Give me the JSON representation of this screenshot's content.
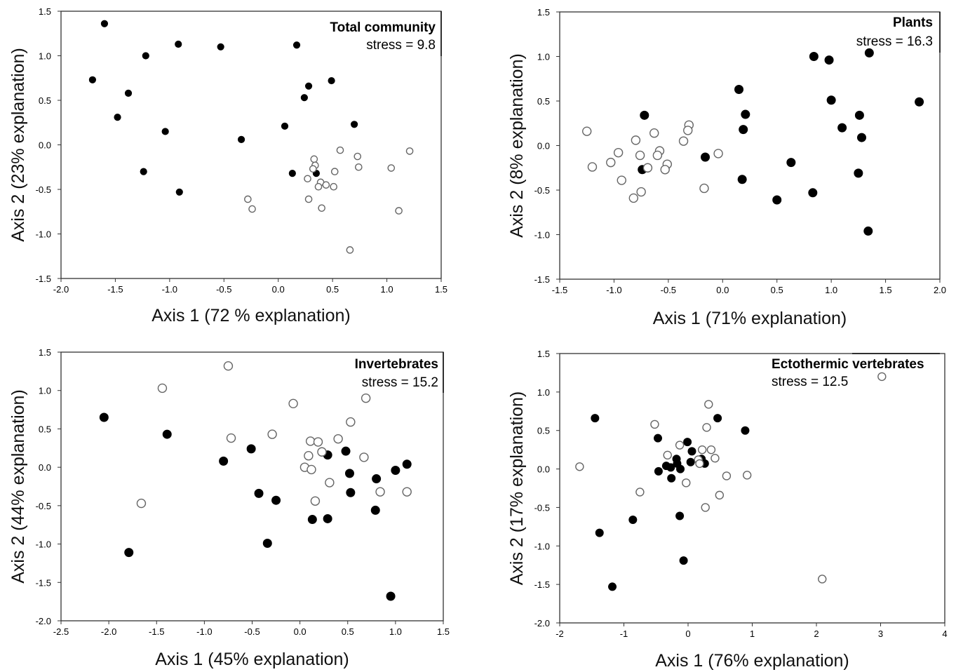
{
  "chart_data": [
    {
      "type": "scatter",
      "title": "Total community",
      "annotation": "stress = 9.8",
      "xlabel": "Axis 1 (72 % explanation)",
      "ylabel": "Axis 2 (23% explanation)",
      "xlim": [
        -2.0,
        1.5
      ],
      "ylim": [
        -1.5,
        1.5
      ],
      "xticks": [
        "-2.0",
        "-1.5",
        "-1.0",
        "-0.5",
        "0.0",
        "0.5",
        "1.0",
        "1.5"
      ],
      "yticks": [
        "-1.5",
        "-1.0",
        "-0.5",
        "0.0",
        "0.5",
        "1.0",
        "1.5"
      ],
      "grid": false,
      "series": [
        {
          "fill": "#000000",
          "points": [
            [
              -1.6,
              1.36
            ],
            [
              -1.22,
              1.0
            ],
            [
              -0.92,
              1.13
            ],
            [
              -0.53,
              1.1
            ],
            [
              0.17,
              1.12
            ],
            [
              -1.71,
              0.73
            ],
            [
              -1.38,
              0.58
            ],
            [
              -1.48,
              0.31
            ],
            [
              -1.04,
              0.15
            ],
            [
              0.49,
              0.72
            ],
            [
              0.28,
              0.66
            ],
            [
              0.24,
              0.53
            ],
            [
              0.06,
              0.21
            ],
            [
              0.7,
              0.23
            ],
            [
              -0.34,
              0.06
            ],
            [
              -1.24,
              -0.3
            ],
            [
              -0.91,
              -0.53
            ],
            [
              0.13,
              -0.32
            ],
            [
              0.35,
              -0.32
            ]
          ]
        },
        {
          "fill": "#ffffff",
          "points": [
            [
              0.57,
              -0.06
            ],
            [
              0.33,
              -0.16
            ],
            [
              0.34,
              -0.23
            ],
            [
              0.32,
              -0.27
            ],
            [
              0.73,
              -0.13
            ],
            [
              0.74,
              -0.25
            ],
            [
              1.21,
              -0.07
            ],
            [
              1.04,
              -0.26
            ],
            [
              0.52,
              -0.3
            ],
            [
              0.27,
              -0.38
            ],
            [
              0.39,
              -0.42
            ],
            [
              0.37,
              -0.47
            ],
            [
              0.44,
              -0.45
            ],
            [
              0.51,
              -0.47
            ],
            [
              0.28,
              -0.61
            ],
            [
              0.4,
              -0.71
            ],
            [
              -0.28,
              -0.61
            ],
            [
              -0.24,
              -0.72
            ],
            [
              1.11,
              -0.74
            ],
            [
              0.66,
              -1.18
            ]
          ]
        }
      ]
    },
    {
      "type": "scatter",
      "title": "Plants",
      "annotation": "stress = 16.3",
      "xlabel": "Axis 1 (71% explanation)",
      "ylabel": "Axis 2 (8% explanation)",
      "xlim": [
        -1.5,
        2.0
      ],
      "ylim": [
        -1.5,
        1.5
      ],
      "xticks": [
        "-1.5",
        "-1.0",
        "-0.5",
        "0.0",
        "0.5",
        "1.0",
        "1.5",
        "2.0"
      ],
      "yticks": [
        "-1.5",
        "-1.0",
        "-0.5",
        "0.0",
        "0.5",
        "1.0",
        "1.5"
      ],
      "grid": false,
      "series": [
        {
          "fill": "#000000",
          "points": [
            [
              0.84,
              1.0
            ],
            [
              0.98,
              0.96
            ],
            [
              1.35,
              1.04
            ],
            [
              0.15,
              0.63
            ],
            [
              1.0,
              0.51
            ],
            [
              1.81,
              0.49
            ],
            [
              -0.72,
              0.34
            ],
            [
              0.21,
              0.35
            ],
            [
              1.26,
              0.34
            ],
            [
              0.19,
              0.18
            ],
            [
              1.1,
              0.2
            ],
            [
              1.28,
              0.09
            ],
            [
              -0.16,
              -0.13
            ],
            [
              0.63,
              -0.19
            ],
            [
              -0.74,
              -0.27
            ],
            [
              1.25,
              -0.31
            ],
            [
              0.18,
              -0.38
            ],
            [
              0.83,
              -0.53
            ],
            [
              0.5,
              -0.61
            ],
            [
              1.34,
              -0.96
            ]
          ]
        },
        {
          "fill": "#ffffff",
          "points": [
            [
              -1.25,
              0.16
            ],
            [
              -0.31,
              0.23
            ],
            [
              -0.32,
              0.17
            ],
            [
              -0.8,
              0.06
            ],
            [
              -0.63,
              0.14
            ],
            [
              -0.36,
              0.05
            ],
            [
              -0.58,
              -0.06
            ],
            [
              -0.96,
              -0.08
            ],
            [
              -1.03,
              -0.19
            ],
            [
              -1.2,
              -0.24
            ],
            [
              -0.76,
              -0.11
            ],
            [
              -0.6,
              -0.11
            ],
            [
              -0.04,
              -0.09
            ],
            [
              -0.69,
              -0.25
            ],
            [
              -0.51,
              -0.21
            ],
            [
              -0.53,
              -0.27
            ],
            [
              -0.93,
              -0.39
            ],
            [
              -0.17,
              -0.48
            ],
            [
              -0.75,
              -0.52
            ],
            [
              -0.82,
              -0.59
            ]
          ]
        }
      ]
    },
    {
      "type": "scatter",
      "title": "Invertebrates",
      "annotation": "stress = 15.2",
      "xlabel": "Axis 1 (45% explanation)",
      "ylabel": "Axis 2 (44% explanation)",
      "xlim": [
        -2.5,
        1.5
      ],
      "ylim": [
        -2.0,
        1.5
      ],
      "xticks": [
        "-2.5",
        "-2.0",
        "-1.5",
        "-1.0",
        "-0.5",
        "0.0",
        "0.5",
        "1.0",
        "1.5"
      ],
      "yticks": [
        "-2.0",
        "-1.5",
        "-1.0",
        "-0.5",
        "0.0",
        "0.5",
        "1.0",
        "1.5"
      ],
      "grid": false,
      "series": [
        {
          "fill": "#000000",
          "points": [
            [
              -2.05,
              0.65
            ],
            [
              -1.39,
              0.43
            ],
            [
              -0.51,
              0.24
            ],
            [
              -0.8,
              0.08
            ],
            [
              0.29,
              0.16
            ],
            [
              0.48,
              0.21
            ],
            [
              0.52,
              -0.08
            ],
            [
              -0.43,
              -0.34
            ],
            [
              -0.25,
              -0.43
            ],
            [
              0.53,
              -0.33
            ],
            [
              0.8,
              -0.15
            ],
            [
              1.0,
              -0.04
            ],
            [
              1.12,
              0.04
            ],
            [
              0.79,
              -0.56
            ],
            [
              0.13,
              -0.68
            ],
            [
              0.29,
              -0.67
            ],
            [
              -0.34,
              -0.99
            ],
            [
              -1.79,
              -1.11
            ],
            [
              0.95,
              -1.68
            ]
          ]
        },
        {
          "fill": "#ffffff",
          "points": [
            [
              -0.75,
              1.32
            ],
            [
              -1.44,
              1.03
            ],
            [
              -0.07,
              0.83
            ],
            [
              0.69,
              0.9
            ],
            [
              0.53,
              0.59
            ],
            [
              -0.29,
              0.43
            ],
            [
              -0.72,
              0.38
            ],
            [
              0.4,
              0.37
            ],
            [
              0.11,
              0.34
            ],
            [
              0.19,
              0.33
            ],
            [
              0.23,
              0.2
            ],
            [
              0.09,
              0.15
            ],
            [
              0.67,
              0.13
            ],
            [
              0.05,
              0.0
            ],
            [
              0.12,
              -0.03
            ],
            [
              0.31,
              -0.2
            ],
            [
              0.84,
              -0.32
            ],
            [
              1.12,
              -0.32
            ],
            [
              0.16,
              -0.44
            ],
            [
              -1.66,
              -0.47
            ]
          ]
        }
      ]
    },
    {
      "type": "scatter",
      "title": "Ectothermic vertebrates",
      "annotation": "stress = 12.5",
      "xlabel": "Axis 1 (76% explanation)",
      "ylabel": "Axis 2 (17% explanation)",
      "xlim": [
        -2,
        4
      ],
      "ylim": [
        -2.0,
        1.5
      ],
      "xticks": [
        "-2",
        "-1",
        "0",
        "1",
        "2",
        "3",
        "4"
      ],
      "yticks": [
        "-2.0",
        "-1.5",
        "-1.0",
        "-0.5",
        "0.0",
        "0.5",
        "1.0",
        "1.5"
      ],
      "grid": false,
      "series": [
        {
          "fill": "#000000",
          "points": [
            [
              -1.45,
              0.66
            ],
            [
              -0.47,
              0.4
            ],
            [
              0.46,
              0.66
            ],
            [
              0.89,
              0.5
            ],
            [
              -0.01,
              0.35
            ],
            [
              0.06,
              0.23
            ],
            [
              -0.18,
              0.13
            ],
            [
              -0.17,
              0.07
            ],
            [
              0.21,
              0.13
            ],
            [
              0.04,
              0.09
            ],
            [
              -0.34,
              0.04
            ],
            [
              -0.27,
              0.02
            ],
            [
              -0.12,
              0.0
            ],
            [
              0.26,
              0.07
            ],
            [
              -0.46,
              -0.03
            ],
            [
              -0.26,
              -0.12
            ],
            [
              -0.86,
              -0.66
            ],
            [
              -0.13,
              -0.61
            ],
            [
              -1.38,
              -0.83
            ],
            [
              -0.07,
              -1.19
            ],
            [
              -1.18,
              -1.53
            ]
          ]
        },
        {
          "fill": "#ffffff",
          "points": [
            [
              3.02,
              1.2
            ],
            [
              0.32,
              0.84
            ],
            [
              -0.52,
              0.58
            ],
            [
              0.29,
              0.54
            ],
            [
              -0.13,
              0.31
            ],
            [
              0.22,
              0.25
            ],
            [
              0.36,
              0.25
            ],
            [
              -0.32,
              0.18
            ],
            [
              0.42,
              0.14
            ],
            [
              0.16,
              0.12
            ],
            [
              0.18,
              0.07
            ],
            [
              0.6,
              -0.09
            ],
            [
              0.92,
              -0.08
            ],
            [
              -1.69,
              0.03
            ],
            [
              -0.03,
              -0.18
            ],
            [
              -0.75,
              -0.3
            ],
            [
              0.49,
              -0.34
            ],
            [
              0.27,
              -0.5
            ],
            [
              2.09,
              -1.43
            ]
          ]
        }
      ]
    }
  ]
}
